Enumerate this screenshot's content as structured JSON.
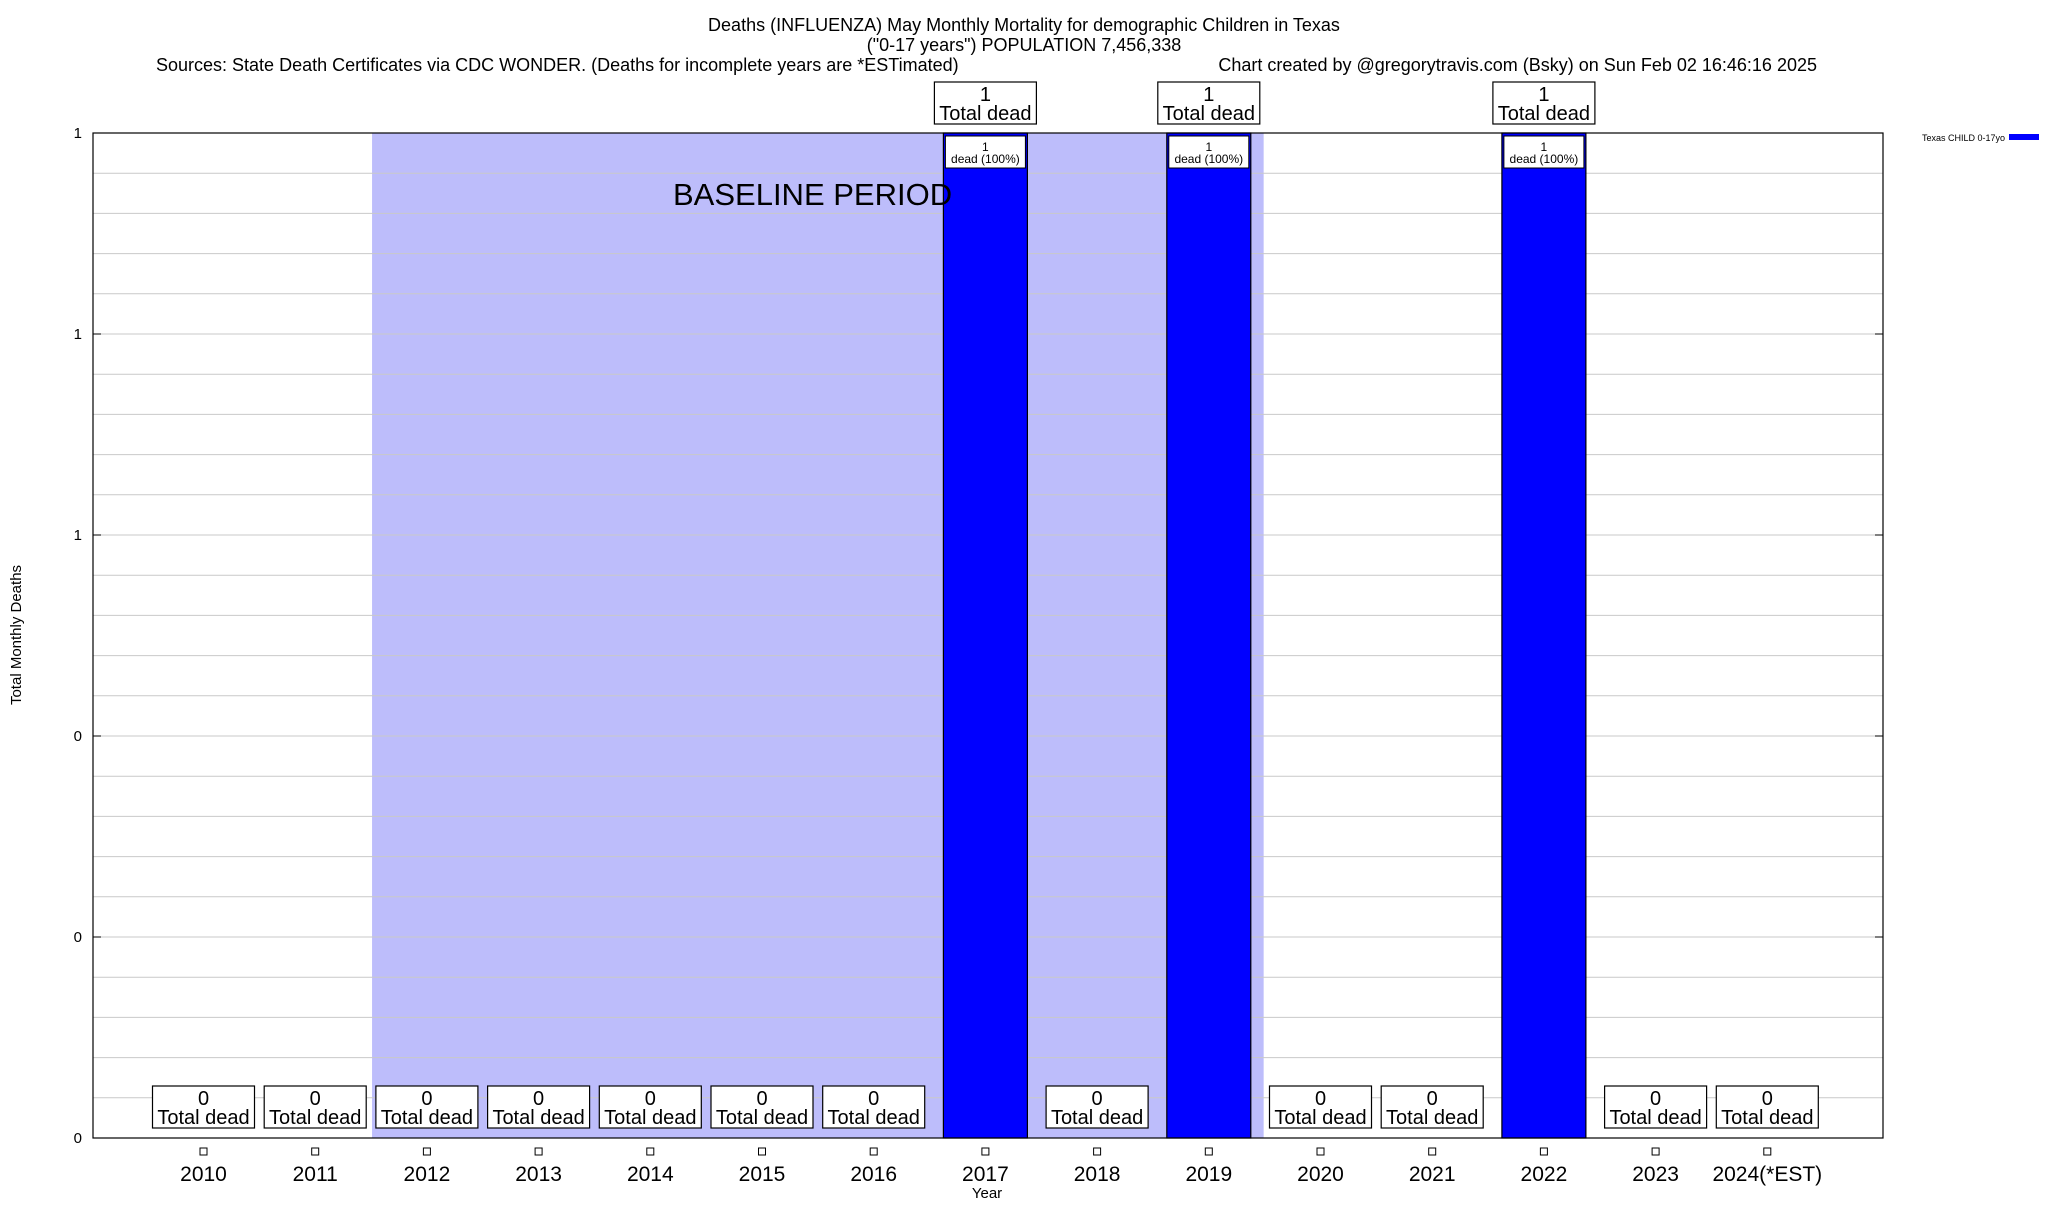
{
  "chart_data": {
    "type": "bar",
    "title": "Deaths (INFLUENZA) May Monthly Mortality for demographic Children in Texas",
    "subtitle": "(\"0-17 years\") POPULATION 7,456,338",
    "sources": "Sources: State Death Certificates via CDC WONDER. (Deaths for incomplete years are *ESTimated)",
    "credit": "Chart created by @gregorytravis.com (Bsky) on Sun Feb 02 16:46:16 2025",
    "xlabel": "Year",
    "ylabel": "Total Monthly Deaths",
    "ylim": [
      0,
      1
    ],
    "y_tick_labels": [
      "0",
      "0",
      "0",
      "1",
      "1",
      "1"
    ],
    "categories": [
      "2010",
      "2011",
      "2012",
      "2013",
      "2014",
      "2015",
      "2016",
      "2017",
      "2018",
      "2019",
      "2020",
      "2021",
      "2022",
      "2023",
      "2024(*EST)"
    ],
    "series": [
      {
        "name": "Texas CHILD 0-17yo",
        "color": "#0000ff",
        "values": [
          0,
          0,
          0,
          0,
          0,
          0,
          0,
          1,
          0,
          1,
          0,
          0,
          1,
          0,
          0
        ]
      }
    ],
    "total_labels": [
      "0",
      "0",
      "0",
      "0",
      "0",
      "0",
      "0",
      "1",
      "0",
      "1",
      "0",
      "0",
      "1",
      "0",
      "0"
    ],
    "total_suffix": "Total dead",
    "bar_labels": {
      "7": [
        "1",
        "dead (100%)"
      ],
      "9": [
        "1",
        "dead (100%)"
      ],
      "12": [
        "1",
        "dead (100%)"
      ]
    },
    "baseline_label": "BASELINE PERIOD",
    "baseline_range": [
      "2012",
      "2019"
    ],
    "baseline_color": "#bdbdfb",
    "grid": true,
    "legend_position": "top-right"
  }
}
